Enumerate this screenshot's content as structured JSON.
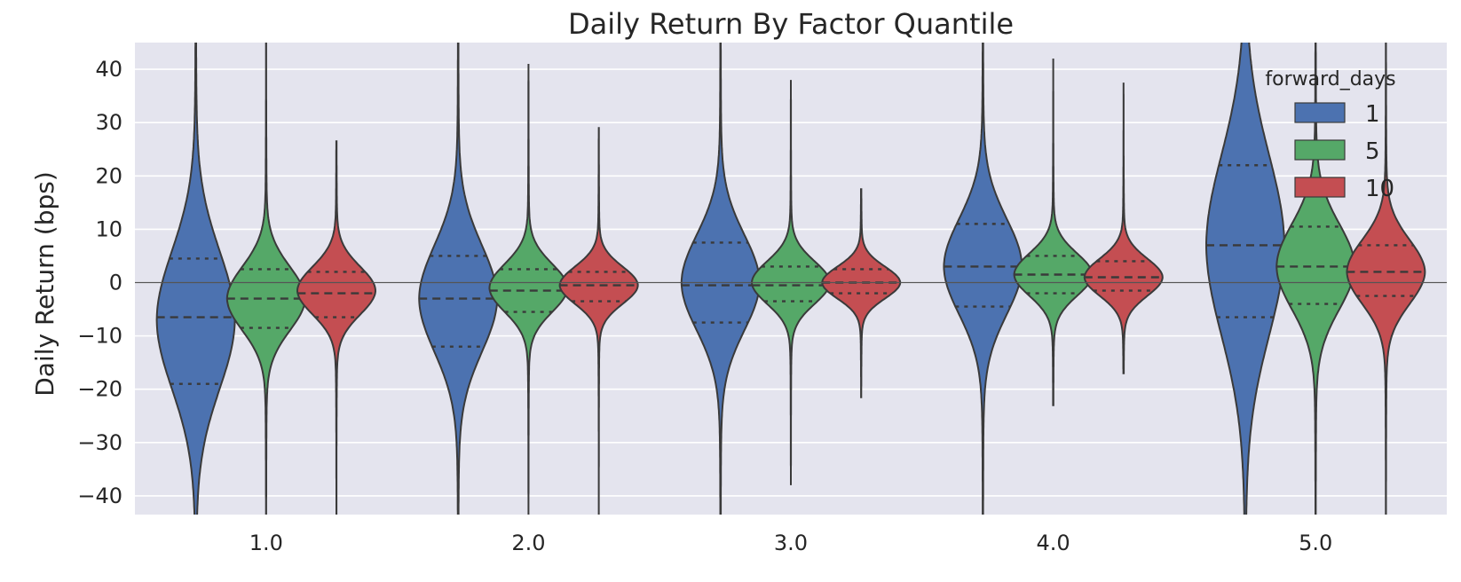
{
  "chart_data": {
    "type": "violin",
    "title": "Daily Return By Factor Quantile",
    "xlabel": "",
    "ylabel": "Daily Return (bps)",
    "ylim": [
      -43.5,
      45
    ],
    "yticks": [
      40,
      30,
      20,
      10,
      0,
      -10,
      -20,
      -30,
      -40
    ],
    "ytick_labels": [
      "40",
      "30",
      "20",
      "10",
      "0",
      "−10",
      "−20",
      "−30",
      "−40"
    ],
    "categories": [
      "1.0",
      "2.0",
      "3.0",
      "4.0",
      "5.0"
    ],
    "grid": true,
    "zero_line": 0,
    "legend": {
      "title": "forward_days",
      "placement": "top-right",
      "entries": [
        "1",
        "5",
        "10"
      ]
    },
    "series": [
      {
        "name": "1",
        "color": "#4c72b0",
        "distributions": [
          {
            "category": "1.0",
            "min": -60,
            "max": 60,
            "q1": -19,
            "median": -6.5,
            "q3": 4.5,
            "mode": -7,
            "spread": 13
          },
          {
            "category": "2.0",
            "min": -60,
            "max": 60,
            "q1": -12,
            "median": -3,
            "q3": 5,
            "mode": -3,
            "spread": 10
          },
          {
            "category": "3.0",
            "min": -60,
            "max": 60,
            "q1": -7.5,
            "median": -0.5,
            "q3": 7.5,
            "mode": 0,
            "spread": 9
          },
          {
            "category": "4.0",
            "min": -60,
            "max": 60,
            "q1": -4.5,
            "median": 3,
            "q3": 11,
            "mode": 3,
            "spread": 9
          },
          {
            "category": "5.0",
            "min": -60,
            "max": 60,
            "q1": -6.5,
            "median": 7,
            "q3": 22,
            "mode": 7,
            "spread": 17
          }
        ]
      },
      {
        "name": "5",
        "color": "#55a868",
        "distributions": [
          {
            "category": "1.0",
            "min": -60,
            "max": 60,
            "q1": -8.5,
            "median": -3,
            "q3": 2.5,
            "mode": -3,
            "spread": 6
          },
          {
            "category": "2.0",
            "min": -60,
            "max": 41,
            "q1": -5.5,
            "median": -1.5,
            "q3": 2.5,
            "mode": -1,
            "spread": 4.5
          },
          {
            "category": "3.0",
            "min": -38,
            "max": 38,
            "q1": -3.5,
            "median": -0.5,
            "q3": 3,
            "mode": 0,
            "spread": 4
          },
          {
            "category": "4.0",
            "min": -23,
            "max": 42,
            "q1": -2,
            "median": 1.5,
            "q3": 5,
            "mode": 1.5,
            "spread": 4
          },
          {
            "category": "5.0",
            "min": -60,
            "max": 60,
            "q1": -4,
            "median": 3,
            "q3": 10.5,
            "mode": 3,
            "spread": 8
          }
        ]
      },
      {
        "name": "10",
        "color": "#c44e52",
        "distributions": [
          {
            "category": "1.0",
            "min": -60,
            "max": 26.5,
            "q1": -6.5,
            "median": -2,
            "q3": 2,
            "mode": -1.5,
            "spread": 4.5
          },
          {
            "category": "2.0",
            "min": -60,
            "max": 29,
            "q1": -3.5,
            "median": -0.5,
            "q3": 2,
            "mode": -0.5,
            "spread": 3.5
          },
          {
            "category": "3.0",
            "min": -21.5,
            "max": 17.5,
            "q1": -2,
            "median": 0,
            "q3": 2.5,
            "mode": 0,
            "spread": 3
          },
          {
            "category": "4.0",
            "min": -17,
            "max": 37.5,
            "q1": -1.5,
            "median": 1,
            "q3": 4,
            "mode": 1,
            "spread": 3.5
          },
          {
            "category": "5.0",
            "min": -60,
            "max": 60,
            "q1": -2.5,
            "median": 2,
            "q3": 7,
            "mode": 2,
            "spread": 6
          }
        ]
      }
    ]
  }
}
